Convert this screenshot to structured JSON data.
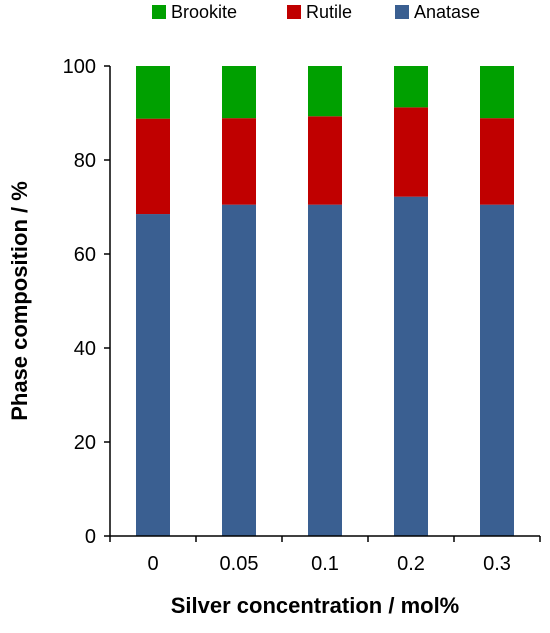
{
  "chart_data": {
    "type": "bar",
    "stacked": true,
    "categories": [
      "0",
      "0.05",
      "0.1",
      "0.2",
      "0.3"
    ],
    "series": [
      {
        "name": "Anatase",
        "color": "#3A5F91",
        "values": [
          68.5,
          70.5,
          70.5,
          72.2,
          70.5
        ]
      },
      {
        "name": "Rutile",
        "color": "#C00000",
        "values": [
          20.3,
          18.4,
          18.8,
          19.0,
          18.4
        ]
      },
      {
        "name": "Brookite",
        "color": "#00A000",
        "values": [
          11.2,
          11.1,
          10.7,
          8.8,
          11.1
        ]
      }
    ],
    "legend": {
      "order": [
        "Brookite",
        "Rutile",
        "Anatase"
      ],
      "position": "top-center"
    },
    "xlabel": "Silver concentration  / mol%",
    "ylabel": "Phase composition / %",
    "ylim": [
      0,
      100
    ],
    "yticks": [
      0,
      20,
      40,
      60,
      80,
      100
    ],
    "grid": false
  }
}
